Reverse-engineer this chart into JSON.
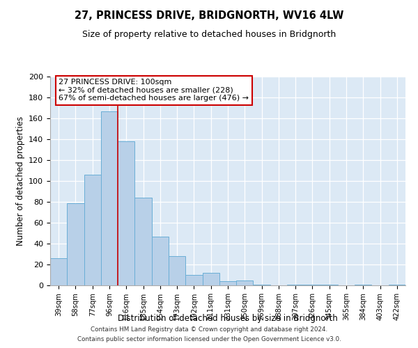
{
  "title": "27, PRINCESS DRIVE, BRIDGNORTH, WV16 4LW",
  "subtitle": "Size of property relative to detached houses in Bridgnorth",
  "xlabel": "Distribution of detached houses by size in Bridgnorth",
  "ylabel": "Number of detached properties",
  "bar_labels": [
    "39sqm",
    "58sqm",
    "77sqm",
    "96sqm",
    "116sqm",
    "135sqm",
    "154sqm",
    "173sqm",
    "192sqm",
    "211sqm",
    "231sqm",
    "250sqm",
    "269sqm",
    "288sqm",
    "307sqm",
    "326sqm",
    "345sqm",
    "365sqm",
    "384sqm",
    "403sqm",
    "422sqm"
  ],
  "bar_values": [
    26,
    79,
    106,
    167,
    138,
    84,
    47,
    28,
    10,
    12,
    4,
    5,
    1,
    0,
    1,
    1,
    1,
    0,
    1,
    0,
    1
  ],
  "bar_color": "#b8d0e8",
  "bar_edge_color": "#6aaed6",
  "marker_line_color": "#cc0000",
  "ylim": [
    0,
    200
  ],
  "yticks": [
    0,
    20,
    40,
    60,
    80,
    100,
    120,
    140,
    160,
    180,
    200
  ],
  "annotation_line1": "27 PRINCESS DRIVE: 100sqm",
  "annotation_line2": "← 32% of detached houses are smaller (228)",
  "annotation_line3": "67% of semi-detached houses are larger (476) →",
  "annotation_box_color": "#ffffff",
  "annotation_box_edge": "#cc0000",
  "footer_line1": "Contains HM Land Registry data © Crown copyright and database right 2024.",
  "footer_line2": "Contains public sector information licensed under the Open Government Licence v3.0.",
  "background_color": "#dce9f5"
}
